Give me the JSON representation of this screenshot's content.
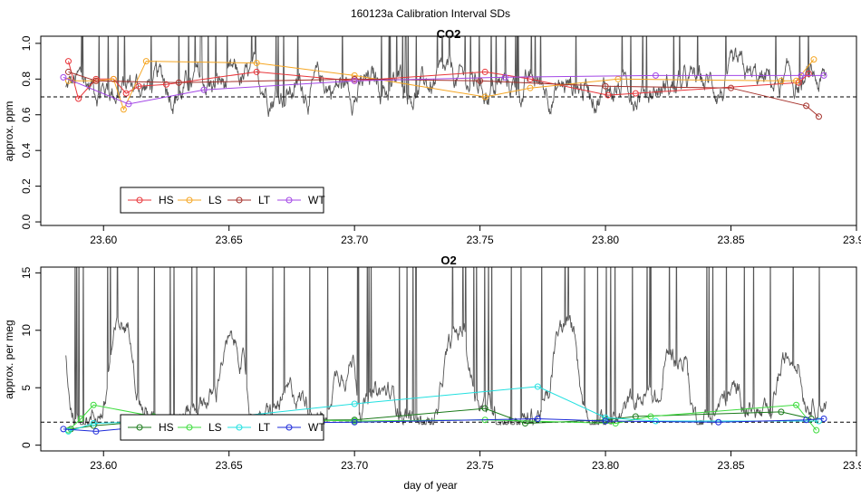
{
  "figure_title": "160123a   Calibration Interval SDs",
  "xlabel": "day of year",
  "chart_data": [
    {
      "type": "line",
      "title": "CO2",
      "ylabel": "approx. ppm",
      "xlim": [
        23.575,
        23.9
      ],
      "ylim": [
        -0.02,
        1.04
      ],
      "xticks": [
        23.6,
        23.65,
        23.7,
        23.75,
        23.8,
        23.85,
        23.9
      ],
      "xtick_labels": [
        "23.60",
        "23.65",
        "23.70",
        "23.75",
        "23.80",
        "23.85",
        "23.90"
      ],
      "yticks": [
        0.0,
        0.2,
        0.4,
        0.6,
        0.8,
        1.0
      ],
      "ytick_labels": [
        "0.0",
        "0.2",
        "0.4",
        "0.6",
        "0.8",
        "1.0"
      ],
      "reference_line": 0.7,
      "background_trace": {
        "color": "#555555",
        "description_kind": "raw signal",
        "ymin": 0.48,
        "ymax": 1.0
      },
      "legend": {
        "placement": "bottom-left",
        "entries": [
          "HS",
          "LS",
          "LT",
          "WT"
        ]
      },
      "series": [
        {
          "name": "HS",
          "color": "#e8353a",
          "x": [
            23.586,
            23.59,
            23.597,
            23.604,
            23.609,
            23.614,
            23.625,
            23.661,
            23.7,
            23.752,
            23.77,
            23.801,
            23.812,
            23.877,
            23.881
          ],
          "y": [
            0.9,
            0.69,
            0.8,
            0.8,
            0.72,
            0.76,
            0.77,
            0.84,
            0.79,
            0.84,
            0.8,
            0.71,
            0.72,
            0.78,
            0.83
          ]
        },
        {
          "name": "LS",
          "color": "#f5a623",
          "x": [
            23.586,
            23.597,
            23.604,
            23.608,
            23.617,
            23.661,
            23.7,
            23.752,
            23.77,
            23.805,
            23.87,
            23.876,
            23.883
          ],
          "y": [
            0.79,
            0.79,
            0.8,
            0.63,
            0.9,
            0.89,
            0.82,
            0.7,
            0.75,
            0.8,
            0.79,
            0.79,
            0.91
          ]
        },
        {
          "name": "LT",
          "color": "#a6322c",
          "x": [
            23.586,
            23.597,
            23.63,
            23.7,
            23.75,
            23.8,
            23.85,
            23.88,
            23.885
          ],
          "y": [
            0.84,
            0.79,
            0.78,
            0.8,
            0.79,
            0.76,
            0.75,
            0.65,
            0.59
          ]
        },
        {
          "name": "WT",
          "color": "#a347e6",
          "x": [
            23.584,
            23.61,
            23.64,
            23.7,
            23.76,
            23.82,
            23.878,
            23.887
          ],
          "y": [
            0.81,
            0.66,
            0.74,
            0.79,
            0.81,
            0.82,
            0.82,
            0.82
          ]
        }
      ]
    },
    {
      "type": "line",
      "title": "O2",
      "ylabel": "approx. per meg",
      "xlim": [
        23.575,
        23.9
      ],
      "ylim": [
        -0.5,
        15.5
      ],
      "xticks": [
        23.6,
        23.65,
        23.7,
        23.75,
        23.8,
        23.85,
        23.9
      ],
      "xtick_labels": [
        "23.60",
        "23.65",
        "23.70",
        "23.75",
        "23.80",
        "23.85",
        "23.90"
      ],
      "yticks": [
        0,
        5,
        10,
        15
      ],
      "ytick_labels": [
        "0",
        "5",
        "10",
        "15"
      ],
      "reference_line": 2.0,
      "background_trace": {
        "color": "#555555",
        "description_kind": "raw signal",
        "ymin": 1.2,
        "ymax": 15.5
      },
      "legend": {
        "placement": "bottom-left",
        "entries": [
          "HS",
          "LS",
          "LT",
          "WT"
        ]
      },
      "series": [
        {
          "name": "HS",
          "color": "#1a7a1a",
          "x": [
            23.587,
            23.596,
            23.62,
            23.7,
            23.752,
            23.768,
            23.8,
            23.812,
            23.87,
            23.882
          ],
          "y": [
            1.4,
            1.7,
            2.1,
            2.2,
            3.2,
            1.9,
            2.2,
            2.5,
            2.9,
            2.3
          ]
        },
        {
          "name": "LS",
          "color": "#3ddc3d",
          "x": [
            23.586,
            23.591,
            23.596,
            23.62,
            23.7,
            23.752,
            23.804,
            23.818,
            23.876,
            23.884
          ],
          "y": [
            1.3,
            2.3,
            3.5,
            2.5,
            2.1,
            2.2,
            1.9,
            2.5,
            3.5,
            1.3
          ]
        },
        {
          "name": "LT",
          "color": "#22e0e0",
          "x": [
            23.586,
            23.596,
            23.64,
            23.7,
            23.773,
            23.8,
            23.82,
            23.885
          ],
          "y": [
            1.2,
            1.9,
            2.2,
            3.6,
            5.1,
            2.4,
            2.1,
            2.1
          ]
        },
        {
          "name": "WT",
          "color": "#1d2bd9",
          "x": [
            23.584,
            23.597,
            23.63,
            23.7,
            23.773,
            23.8,
            23.845,
            23.88,
            23.887
          ],
          "y": [
            1.4,
            1.2,
            1.9,
            2.0,
            2.3,
            2.1,
            2.0,
            2.2,
            2.3
          ]
        }
      ]
    }
  ]
}
